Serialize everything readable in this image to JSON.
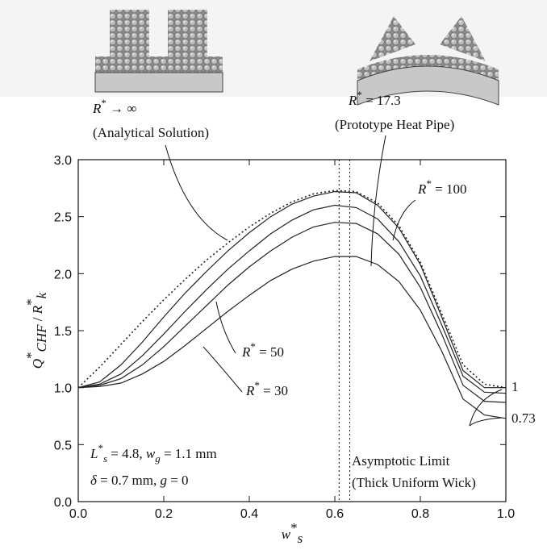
{
  "chart_data": {
    "type": "line",
    "xlabel": [
      {
        "text": "w",
        "style": "italic"
      },
      {
        "text": "*",
        "style": "sup"
      },
      {
        "text": "s",
        "style": "sub"
      }
    ],
    "ylabel": [
      {
        "text": "Q",
        "style": "italic"
      },
      {
        "text": "*",
        "style": "sup"
      },
      {
        "text": "CHF",
        "style": "sub"
      },
      {
        "text": " / "
      },
      {
        "text": "R",
        "style": "italic"
      },
      {
        "text": "*",
        "style": "sup"
      },
      {
        "text": "k",
        "style": "sub"
      }
    ],
    "x": [
      0,
      0.05,
      0.1,
      0.15,
      0.2,
      0.25,
      0.3,
      0.35,
      0.4,
      0.45,
      0.5,
      0.55,
      0.6,
      0.65,
      0.7,
      0.75,
      0.8,
      0.85,
      0.9,
      0.95,
      1.0
    ],
    "series": [
      {
        "color": "#222",
        "dash": "dotted",
        "values": [
          1.0,
          1.18,
          1.38,
          1.58,
          1.77,
          1.95,
          2.12,
          2.27,
          2.41,
          2.53,
          2.63,
          2.7,
          2.73,
          2.72,
          2.62,
          2.42,
          2.1,
          1.65,
          1.2,
          1.03,
          1.0
        ]
      },
      {
        "color": "#222",
        "dash": "solid",
        "values": [
          1.0,
          1.05,
          1.2,
          1.4,
          1.62,
          1.83,
          2.02,
          2.2,
          2.36,
          2.5,
          2.61,
          2.68,
          2.72,
          2.71,
          2.6,
          2.4,
          2.08,
          1.62,
          1.15,
          1.0,
          1.0
        ]
      },
      {
        "color": "#222",
        "dash": "solid",
        "values": [
          1.0,
          1.03,
          1.12,
          1.28,
          1.47,
          1.67,
          1.86,
          2.04,
          2.2,
          2.35,
          2.47,
          2.56,
          2.6,
          2.58,
          2.48,
          2.28,
          1.98,
          1.55,
          1.1,
          0.96,
          0.95
        ]
      },
      {
        "color": "#222",
        "dash": "solid",
        "values": [
          1.0,
          1.02,
          1.08,
          1.2,
          1.36,
          1.54,
          1.72,
          1.9,
          2.06,
          2.2,
          2.32,
          2.41,
          2.45,
          2.44,
          2.35,
          2.17,
          1.88,
          1.47,
          1.02,
          0.88,
          0.87
        ]
      },
      {
        "color": "#222",
        "dash": "solid",
        "values": [
          1.0,
          1.01,
          1.04,
          1.12,
          1.23,
          1.37,
          1.52,
          1.67,
          1.81,
          1.94,
          2.04,
          2.11,
          2.15,
          2.15,
          2.08,
          1.93,
          1.68,
          1.32,
          0.9,
          0.76,
          0.73
        ]
      }
    ],
    "vlines": [
      0.61,
      0.635
    ],
    "xlim": [
      0,
      1.0
    ],
    "ylim": [
      0,
      3.0
    ],
    "xticks": [
      {
        "value": 0,
        "label": "0.0"
      },
      0.2,
      0.4,
      0.6,
      0.8,
      {
        "value": 1,
        "label": "1.0"
      }
    ],
    "yticks": [
      {
        "value": 0,
        "label": "0.0"
      },
      0.5,
      {
        "value": 1,
        "label": "1.0"
      },
      1.5,
      {
        "value": 2,
        "label": "2.0"
      },
      2.5,
      {
        "value": 3,
        "label": "3.0"
      }
    ],
    "annotations": [
      [
        {
          "text": "R",
          "style": "italic"
        },
        {
          "text": "*",
          "style": "sup"
        },
        {
          "text": " → ∞"
        }
      ],
      [
        {
          "text": "(Analytical Solution)"
        }
      ],
      [
        {
          "text": "R",
          "style": "italic"
        },
        {
          "text": "*",
          "style": "sup"
        },
        {
          "text": "  =  17.3"
        }
      ],
      [
        {
          "text": "(Prototype Heat Pipe)"
        }
      ],
      [
        {
          "text": "R",
          "style": "italic"
        },
        {
          "text": "*",
          "style": "sup"
        },
        {
          "text": "  =  100"
        }
      ],
      [
        {
          "text": "R",
          "style": "italic"
        },
        {
          "text": "*",
          "style": "sup"
        },
        {
          "text": "  =  50"
        }
      ],
      [
        {
          "text": "R",
          "style": "italic"
        },
        {
          "text": "*",
          "style": "sup"
        },
        {
          "text": "  =  30"
        }
      ],
      [
        {
          "text": "Asymptotic Limit"
        }
      ],
      [
        {
          "text": "(Thick Uniform Wick)"
        }
      ],
      [
        {
          "text": "L",
          "style": "italic"
        },
        {
          "text": "*",
          "style": "sup"
        },
        {
          "text": "s",
          "style": "sub"
        },
        {
          "text": "  =  4.8,  "
        },
        {
          "text": "w",
          "style": "italic"
        },
        {
          "text": "g",
          "style": "sub"
        },
        {
          "text": "  =  1.1  mm"
        }
      ],
      [
        {
          "text": "δ",
          "style": "italic"
        },
        {
          "text": "  =  0.7  mm,  "
        },
        {
          "text": "g",
          "style": "italic"
        },
        {
          "text": "  =  0"
        }
      ],
      [
        {
          "text": "1"
        }
      ],
      [
        {
          "text": "0.73"
        }
      ]
    ]
  }
}
